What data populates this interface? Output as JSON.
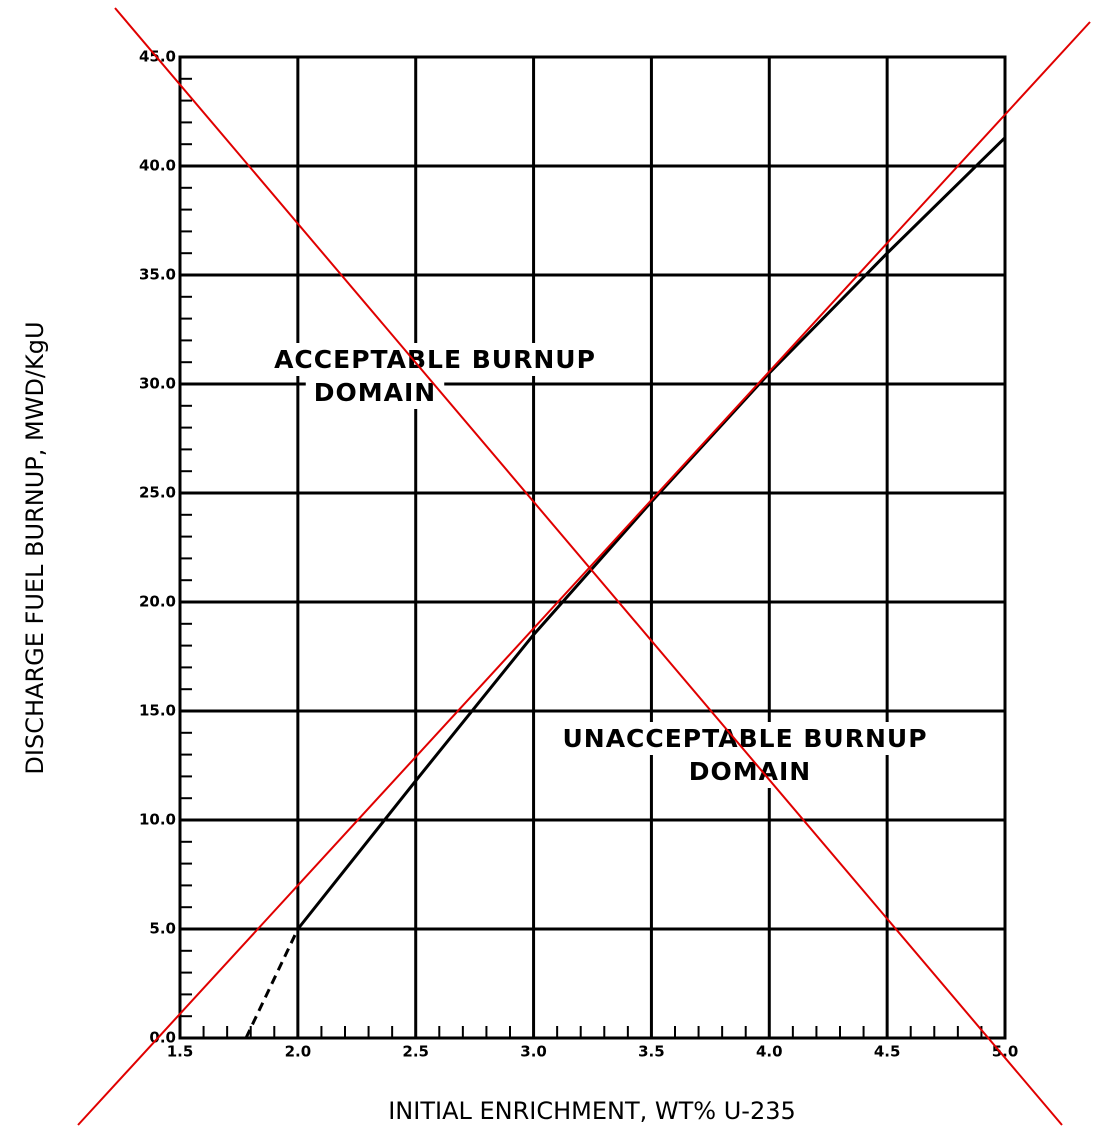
{
  "chart_data": {
    "type": "line",
    "xlabel": "INITIAL ENRICHMENT, WT% U-235",
    "ylabel": "DISCHARGE FUEL BURNUP, MWD/KgU",
    "annotations": [
      {
        "lines": [
          "ACCEPTABLE BURNUP",
          "DOMAIN"
        ]
      },
      {
        "lines": [
          "UNACCEPTABLE BURNUP",
          "DOMAIN"
        ]
      }
    ],
    "series": [
      {
        "style": "solid",
        "color": "#000000",
        "x": [
          2.0,
          2.5,
          3.0,
          3.5,
          4.0,
          4.5,
          5.0
        ],
        "values": [
          5.0,
          11.8,
          18.5,
          24.6,
          30.5,
          36.0,
          41.3
        ]
      },
      {
        "style": "dashed",
        "color": "#000000",
        "x": [
          1.78,
          2.0
        ],
        "values": [
          0.0,
          5.0
        ]
      }
    ],
    "xlim": [
      1.5,
      5.0
    ],
    "ylim": [
      0,
      45
    ],
    "xticks": [
      1.5,
      {
        "value": 2,
        "label": "2.0"
      },
      2.5,
      {
        "value": 3,
        "label": "3.0"
      },
      3.5,
      {
        "value": 4,
        "label": "4.0"
      },
      4.5,
      {
        "value": 5,
        "label": "5.0"
      }
    ],
    "yticks": [
      {
        "value": 0,
        "label": "0.0"
      },
      {
        "value": 5,
        "label": "5.0"
      },
      {
        "value": 10,
        "label": "10.0"
      },
      {
        "value": 15,
        "label": "15.0"
      },
      {
        "value": 20,
        "label": "20.0"
      },
      {
        "value": 25,
        "label": "25.0"
      },
      {
        "value": 30,
        "label": "30.0"
      },
      {
        "value": 35,
        "label": "35.0"
      },
      {
        "value": 40,
        "label": "40.0"
      },
      {
        "value": 45,
        "label": "45.0"
      }
    ],
    "grid": true
  }
}
